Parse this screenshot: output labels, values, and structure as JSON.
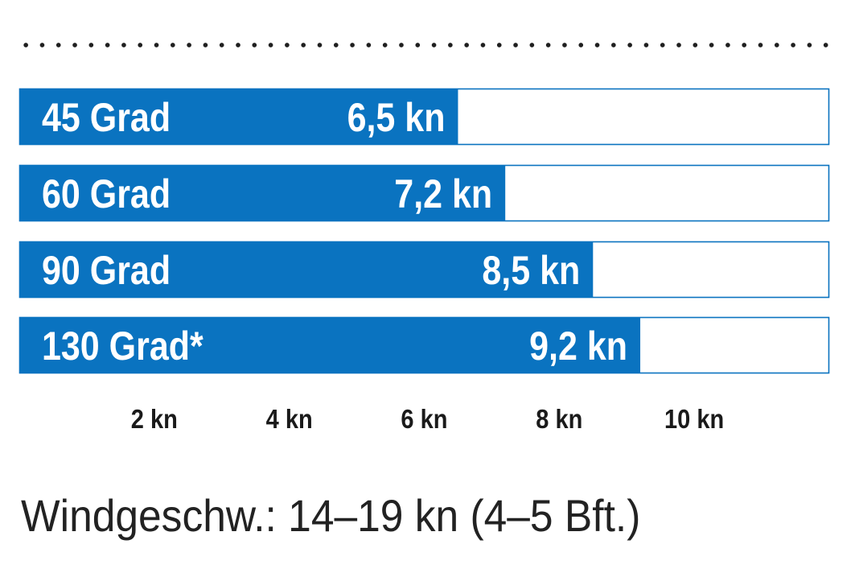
{
  "chart_data": {
    "type": "bar",
    "orientation": "horizontal",
    "categories": [
      "45 Grad",
      "60 Grad",
      "90 Grad",
      "130 Grad*"
    ],
    "values": [
      6.5,
      7.2,
      8.5,
      9.2
    ],
    "value_labels": [
      "6,5 kn",
      "7,2 kn",
      "8,5 kn",
      "9,2 kn"
    ],
    "x_ticks": [
      2,
      4,
      6,
      8,
      10
    ],
    "x_tick_labels": [
      "2 kn",
      "4 kn",
      "6 kn",
      "8 kn",
      "10 kn"
    ],
    "xlim": [
      0,
      12
    ],
    "grid": false,
    "colors": {
      "bar": "#0a73c0",
      "track_border": "#0a73c0",
      "background": "#ffffff"
    }
  },
  "footnote": "Windgeschw.: 14–19 kn (4–5 Bft.)"
}
